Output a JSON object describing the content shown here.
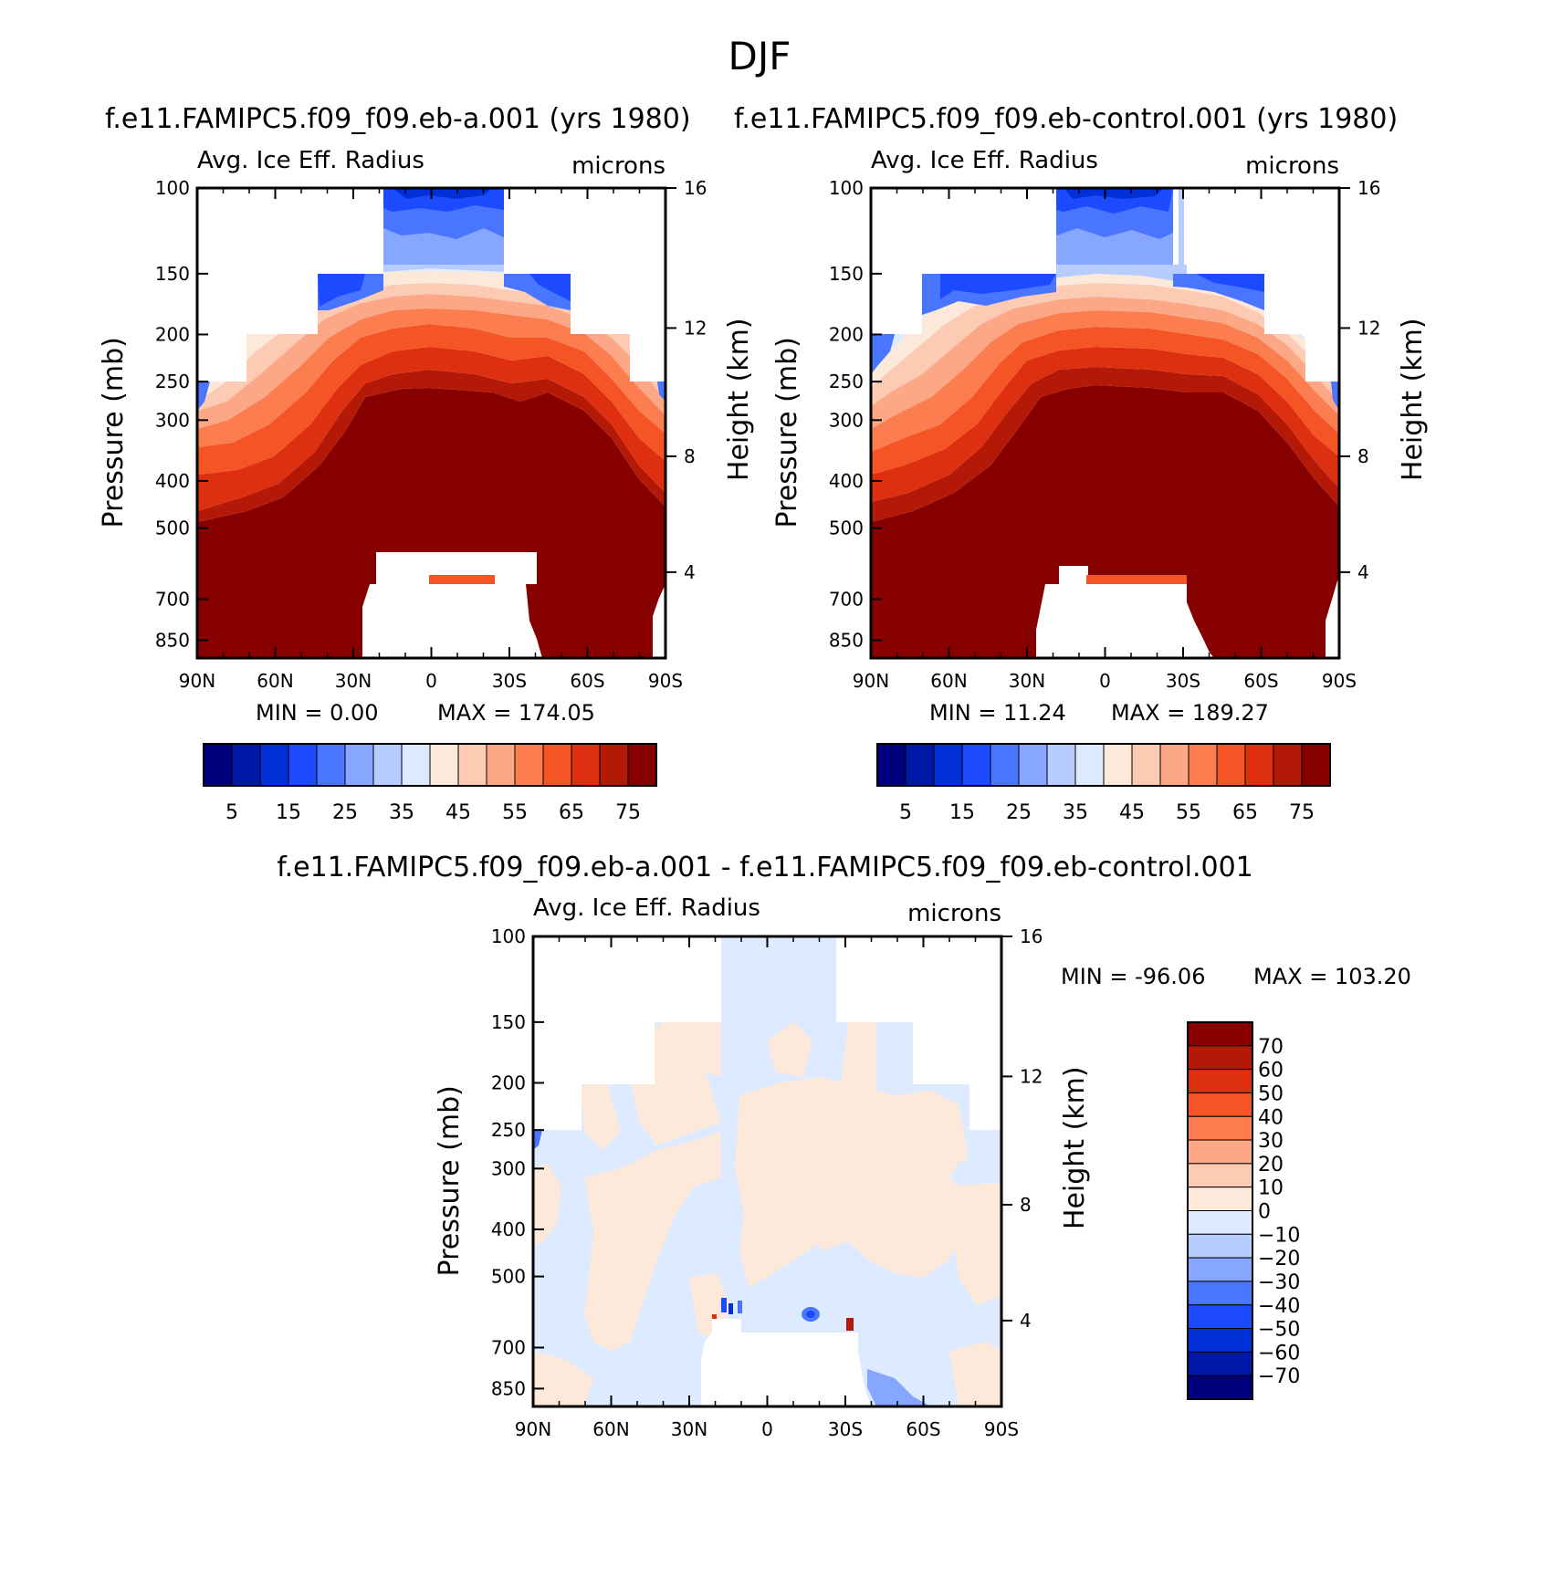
{
  "page_title": "DJF",
  "chart_data": [
    {
      "type": "contour",
      "title": "f.e11.FAMIPC5.f09_f09.eb-a.001 (yrs 1980)",
      "left_string": "Avg. Ice Eff. Radius",
      "right_string": "microns",
      "ylabel": "Pressure (mb)",
      "ylabel_right": "Height (km)",
      "x_ticks": [
        "90N",
        "60N",
        "30N",
        "0",
        "30S",
        "60S",
        "90S"
      ],
      "y_ticks": [
        "100",
        "150",
        "200",
        "250",
        "300",
        "400",
        "500",
        "700",
        "850"
      ],
      "y_ticks_right": [
        "16",
        "12",
        "8",
        "4"
      ],
      "min_text": "MIN =   0.00",
      "max_text": "MAX = 174.05",
      "colorbar_labels": [
        "5",
        "15",
        "25",
        "35",
        "45",
        "55",
        "65",
        "75"
      ],
      "ylim": [
        100,
        925
      ],
      "xlim": [
        "90N",
        "90S"
      ]
    },
    {
      "type": "contour",
      "title": "f.e11.FAMIPC5.f09_f09.eb-control.001 (yrs 1980)",
      "left_string": "Avg. Ice Eff. Radius",
      "right_string": "microns",
      "ylabel": "Pressure (mb)",
      "ylabel_right": "Height (km)",
      "x_ticks": [
        "90N",
        "60N",
        "30N",
        "0",
        "30S",
        "60S",
        "90S"
      ],
      "y_ticks": [
        "100",
        "150",
        "200",
        "250",
        "300",
        "400",
        "500",
        "700",
        "850"
      ],
      "y_ticks_right": [
        "16",
        "12",
        "8",
        "4"
      ],
      "min_text": "MIN =  11.24",
      "max_text": "MAX = 189.27",
      "colorbar_labels": [
        "5",
        "15",
        "25",
        "35",
        "45",
        "55",
        "65",
        "75"
      ],
      "ylim": [
        100,
        925
      ],
      "xlim": [
        "90N",
        "90S"
      ]
    },
    {
      "type": "contour",
      "title": "f.e11.FAMIPC5.f09_f09.eb-a.001 - f.e11.FAMIPC5.f09_f09.eb-control.001",
      "left_string": "Avg. Ice Eff. Radius",
      "right_string": "microns",
      "ylabel": "Pressure (mb)",
      "ylabel_right": "Height (km)",
      "x_ticks": [
        "90N",
        "60N",
        "30N",
        "0",
        "30S",
        "60S",
        "90S"
      ],
      "y_ticks": [
        "100",
        "150",
        "200",
        "250",
        "300",
        "400",
        "500",
        "700",
        "850"
      ],
      "y_ticks_right": [
        "16",
        "12",
        "8",
        "4"
      ],
      "min_text": "MIN = -96.06",
      "max_text": "MAX = 103.20",
      "colorbar_labels": [
        "70",
        "60",
        "50",
        "40",
        "30",
        "20",
        "10",
        "0",
        "-10",
        "-20",
        "-30",
        "-40",
        "-50",
        "-60",
        "-70"
      ],
      "ylim": [
        100,
        925
      ],
      "xlim": [
        "90N",
        "90S"
      ]
    }
  ],
  "palette": [
    "#00007f",
    "#0018a8",
    "#0030d6",
    "#1c4bff",
    "#4a76ff",
    "#86a6ff",
    "#b7ccff",
    "#deeaff",
    "#fde9d9",
    "#fdcbb3",
    "#fca887",
    "#fc7e50",
    "#f55424",
    "#de3010",
    "#b41908",
    "#870000"
  ]
}
